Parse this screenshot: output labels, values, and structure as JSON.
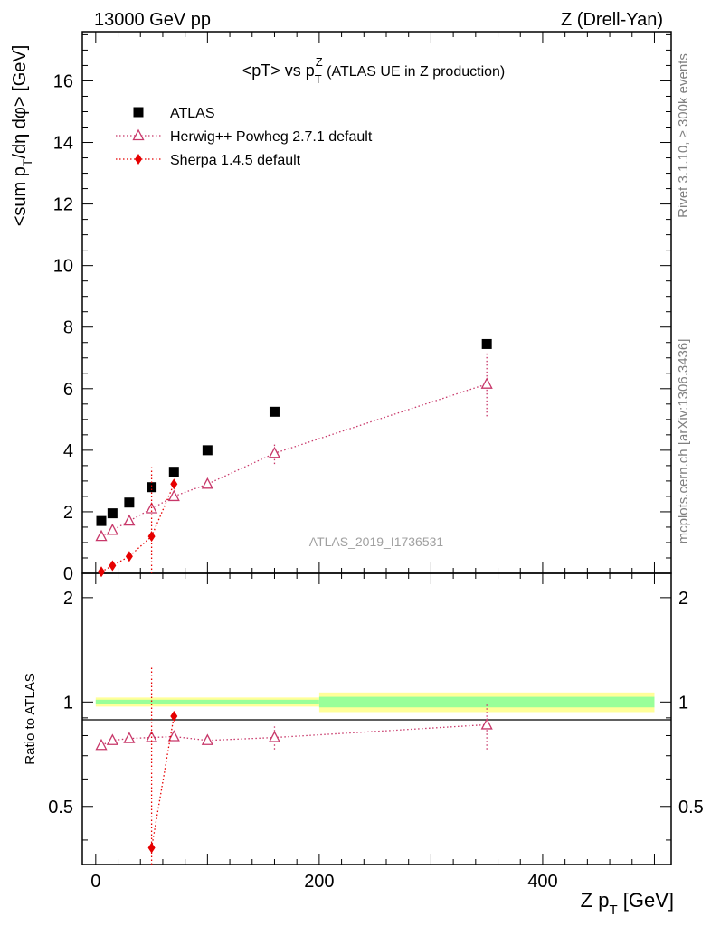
{
  "header": {
    "left": "13000 GeV pp",
    "right": "Z (Drell-Yan)"
  },
  "side": {
    "top": "Rivet 3.1.10, ≥ 300k events",
    "bottom": "mcplots.cern.ch [arXiv:1306.3436]"
  },
  "watermark": "ATLAS_2019_I1736531",
  "chart_data": [
    {
      "type": "scatter",
      "panel": "main",
      "title": "<pT> vs pTZ (ATLAS UE in Z production)",
      "ylabel": "<sum pT/dη dφ> [GeV]",
      "xlim": [
        -12,
        515
      ],
      "ylim": [
        0,
        17.6
      ],
      "yticks": [
        0,
        2,
        4,
        6,
        8,
        10,
        12,
        14,
        16
      ],
      "yticklabels": [
        "0",
        "2",
        "4",
        "6",
        "8",
        "10",
        "12",
        "14",
        "16"
      ],
      "legend_position": "top-left",
      "series": [
        {
          "name": "ATLAS",
          "color": "#000000",
          "marker": "square",
          "x": [
            5,
            15,
            30,
            50,
            70,
            100,
            160,
            350
          ],
          "y": [
            1.7,
            1.95,
            2.3,
            2.8,
            3.3,
            4.0,
            5.25,
            7.45
          ]
        },
        {
          "name": "Herwig++ Powheg 2.7.1 default",
          "color": "#c8386a",
          "marker": "open-triangle",
          "line": "dotted",
          "x": [
            5,
            15,
            30,
            50,
            70,
            100,
            160,
            350
          ],
          "y": [
            1.2,
            1.4,
            1.7,
            2.1,
            2.5,
            2.9,
            3.9,
            6.15
          ],
          "yerr": [
            0.05,
            0.05,
            0.05,
            0.1,
            0.1,
            0.1,
            0.35,
            1.05
          ]
        },
        {
          "name": "Sherpa 1.4.5 default",
          "color": "#e60000",
          "marker": "diamond",
          "line": "dotted",
          "x": [
            5,
            15,
            30,
            50,
            70
          ],
          "y": [
            0.05,
            0.25,
            0.55,
            1.2,
            2.9
          ],
          "yerr": [
            0.05,
            0.1,
            0.15,
            2.25,
            0.1
          ]
        }
      ]
    },
    {
      "type": "scatter",
      "panel": "ratio",
      "ylabel": "Ratio to ATLAS",
      "xlabel": "Z pT [GeV]",
      "xlim": [
        -12,
        515
      ],
      "ylim": [
        0.34,
        2.35
      ],
      "xticks": [
        0,
        200,
        400
      ],
      "xticklabels": [
        "0",
        "200",
        "400"
      ],
      "yticks": [
        0.5,
        1,
        2
      ],
      "yticklabels": [
        "0.5",
        "1",
        "2"
      ],
      "bands": [
        {
          "x0": 0,
          "x1": 200,
          "inner": [
            0.985,
            1.015
          ],
          "outer": [
            0.97,
            1.03
          ]
        },
        {
          "x0": 200,
          "x1": 500,
          "inner": [
            0.965,
            1.035
          ],
          "outer": [
            0.935,
            1.065
          ]
        }
      ],
      "series": [
        {
          "name": "Herwig++ Powheg 2.7.1 default",
          "color": "#c8386a",
          "marker": "open-triangle",
          "line": "dotted",
          "x": [
            5,
            15,
            30,
            50,
            70,
            100,
            160,
            350
          ],
          "y": [
            0.75,
            0.775,
            0.785,
            0.79,
            0.795,
            0.775,
            0.79,
            0.86
          ],
          "yerr": [
            0.01,
            0.01,
            0.01,
            0.01,
            0.01,
            0.015,
            0.06,
            0.13
          ]
        },
        {
          "name": "Sherpa 1.4.5 default",
          "color": "#e60000",
          "marker": "diamond",
          "line": "dotted",
          "x": [
            50,
            70
          ],
          "y": [
            0.38,
            0.91
          ],
          "yerr": [
            0.88,
            0.02
          ]
        }
      ]
    }
  ]
}
